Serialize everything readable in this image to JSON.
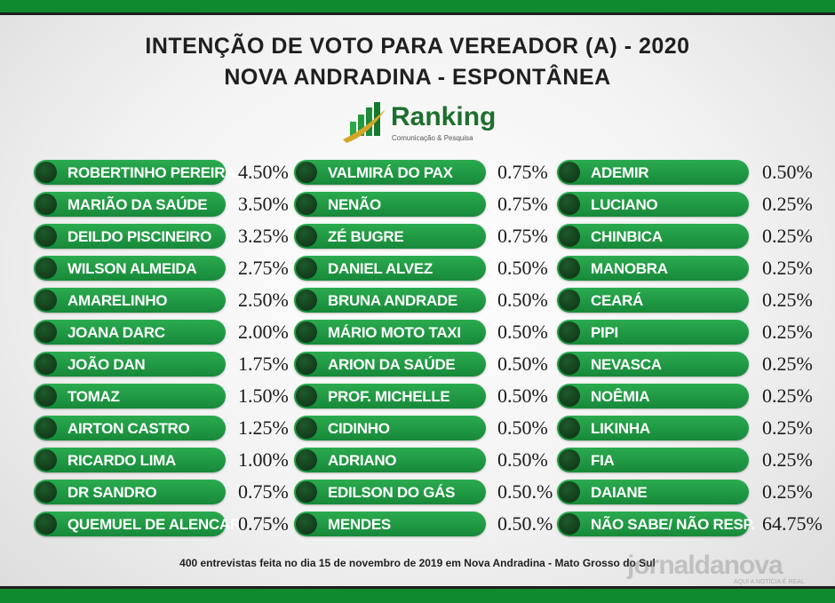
{
  "header": {
    "title_line1": "INTENÇÃO DE VOTO PARA VEREADOR (A) - 2020",
    "title_line2": "NOVA ANDRADINA - ESPONTÂNEA"
  },
  "logo": {
    "name": "Ranking",
    "tagline": "Comunicação & Pesquisa"
  },
  "chart_data": {
    "type": "table",
    "columns": [
      [
        {
          "label": "ROBERTINHO PEREIRA",
          "value": 4.5,
          "display": "4.50%"
        },
        {
          "label": "MARIÃO DA SAÚDE",
          "value": 3.5,
          "display": "3.50%"
        },
        {
          "label": "DEILDO PISCINEIRO",
          "value": 3.25,
          "display": "3.25%"
        },
        {
          "label": "WILSON ALMEIDA",
          "value": 2.75,
          "display": "2.75%"
        },
        {
          "label": "AMARELINHO",
          "value": 2.5,
          "display": "2.50%"
        },
        {
          "label": "JOANA DARC",
          "value": 2.0,
          "display": "2.00%"
        },
        {
          "label": "JOÃO DAN",
          "value": 1.75,
          "display": "1.75%"
        },
        {
          "label": "TOMAZ",
          "value": 1.5,
          "display": "1.50%"
        },
        {
          "label": "AIRTON CASTRO",
          "value": 1.25,
          "display": "1.25%"
        },
        {
          "label": "RICARDO LIMA",
          "value": 1.0,
          "display": "1.00%"
        },
        {
          "label": "DR SANDRO",
          "value": 0.75,
          "display": "0.75%"
        },
        {
          "label": "QUEMUEL DE ALENCAR",
          "value": 0.75,
          "display": "0.75%"
        }
      ],
      [
        {
          "label": "VALMIRÁ DO PAX",
          "value": 0.75,
          "display": "0.75%"
        },
        {
          "label": "NENÃO",
          "value": 0.75,
          "display": "0.75%"
        },
        {
          "label": "ZÉ BUGRE",
          "value": 0.75,
          "display": "0.75%"
        },
        {
          "label": "DANIEL ALVEZ",
          "value": 0.5,
          "display": "0.50%"
        },
        {
          "label": "BRUNA ANDRADE",
          "value": 0.5,
          "display": "0.50%"
        },
        {
          "label": "MÁRIO MOTO TAXI",
          "value": 0.5,
          "display": "0.50%"
        },
        {
          "label": "ARION DA SAÚDE",
          "value": 0.5,
          "display": "0.50%"
        },
        {
          "label": "PROF. MICHELLE",
          "value": 0.5,
          "display": "0.50%"
        },
        {
          "label": "CIDINHO",
          "value": 0.5,
          "display": "0.50%"
        },
        {
          "label": "ADRIANO",
          "value": 0.5,
          "display": "0.50%"
        },
        {
          "label": "EDILSON DO GÁS",
          "value": 0.5,
          "display": "0.50.%"
        },
        {
          "label": "MENDES",
          "value": 0.5,
          "display": "0.50.%"
        }
      ],
      [
        {
          "label": "ADEMIR",
          "value": 0.5,
          "display": "0.50%"
        },
        {
          "label": "LUCIANO",
          "value": 0.25,
          "display": "0.25%"
        },
        {
          "label": "CHINBICA",
          "value": 0.25,
          "display": "0.25%"
        },
        {
          "label": "MANOBRA",
          "value": 0.25,
          "display": "0.25%"
        },
        {
          "label": "CEARÁ",
          "value": 0.25,
          "display": "0.25%"
        },
        {
          "label": "PIPI",
          "value": 0.25,
          "display": "0.25%"
        },
        {
          "label": "NEVASCA",
          "value": 0.25,
          "display": "0.25%"
        },
        {
          "label": "NOÊMIA",
          "value": 0.25,
          "display": "0.25%"
        },
        {
          "label": "LIKINHA",
          "value": 0.25,
          "display": "0.25%"
        },
        {
          "label": "FIA",
          "value": 0.25,
          "display": "0.25%"
        },
        {
          "label": "DAIANE",
          "value": 0.25,
          "display": "0.25%"
        },
        {
          "label": "NÃO SABE/ NÃO RESP.",
          "value": 64.75,
          "display": "64.75%"
        }
      ]
    ]
  },
  "footer": {
    "note": "400 entrevistas feita no dia 15 de novembro de 2019 em Nova Andradina - Mato Grosso do Sul"
  },
  "watermark": {
    "name": "jornaldanova",
    "tagline": "AQUI A NOTÍCIA É REAL"
  },
  "colors": {
    "accent": "#0f8a2f",
    "pill": "#1f9a44",
    "dot": "#0b2f14",
    "text": "#1f1f1f"
  }
}
